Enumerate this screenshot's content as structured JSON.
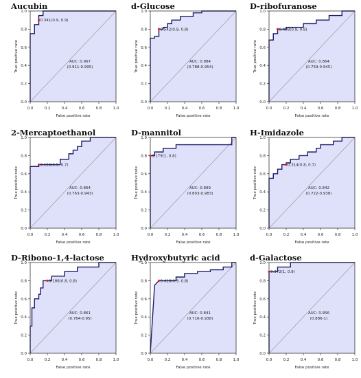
{
  "chart_data": [
    {
      "type": "line",
      "title": "Aucubin",
      "xlabel": "False positive rate",
      "ylabel": "True positive rate",
      "xlim": [
        0,
        1
      ],
      "ylim": [
        0,
        1
      ],
      "xticks": [
        "0.0",
        "0.2",
        "0.4",
        "0.6",
        "0.8",
        "1.0"
      ],
      "yticks": [
        "0.0",
        "0.2",
        "0.4",
        "0.6",
        "0.8",
        "1.0"
      ],
      "roc": [
        [
          0,
          0
        ],
        [
          0,
          0.75
        ],
        [
          0.05,
          0.75
        ],
        [
          0.05,
          0.85
        ],
        [
          0.1,
          0.85
        ],
        [
          0.1,
          0.9
        ],
        [
          0.1,
          0.95
        ],
        [
          0.15,
          0.95
        ],
        [
          0.15,
          1
        ],
        [
          1,
          1
        ]
      ],
      "threshold_point": [
        0.1,
        0.9
      ],
      "threshold_label": "0.341(0.9, 0.9)",
      "auc": "AUC: 0.967",
      "ci": "(0.911-0.995)"
    },
    {
      "type": "line",
      "title": "d-Glucose",
      "xlabel": "False positive rate",
      "ylabel": "True positive rate",
      "xlim": [
        0,
        1
      ],
      "ylim": [
        0,
        1
      ],
      "xticks": [
        "0.0",
        "0.2",
        "0.4",
        "0.6",
        "0.8",
        "1.0"
      ],
      "yticks": [
        "0.0",
        "0.2",
        "0.4",
        "0.6",
        "0.8",
        "1.0"
      ],
      "roc": [
        [
          0,
          0
        ],
        [
          0,
          0.7
        ],
        [
          0.05,
          0.7
        ],
        [
          0.05,
          0.72
        ],
        [
          0.1,
          0.72
        ],
        [
          0.1,
          0.8
        ],
        [
          0.15,
          0.8
        ],
        [
          0.15,
          0.82
        ],
        [
          0.2,
          0.82
        ],
        [
          0.2,
          0.86
        ],
        [
          0.25,
          0.86
        ],
        [
          0.25,
          0.9
        ],
        [
          0.35,
          0.9
        ],
        [
          0.35,
          0.94
        ],
        [
          0.5,
          0.94
        ],
        [
          0.5,
          0.98
        ],
        [
          0.6,
          0.98
        ],
        [
          0.6,
          1
        ],
        [
          1,
          1
        ]
      ],
      "threshold_point": [
        0.1,
        0.8
      ],
      "threshold_label": "0.542(0.9, 0.8)",
      "auc": "AUC: 0.884",
      "ci": "(0.788-0.954)"
    },
    {
      "type": "line",
      "title": "D-ribofuranose",
      "xlabel": "False positive rate",
      "ylabel": "True positive rate",
      "xlim": [
        0,
        1
      ],
      "ylim": [
        0,
        1
      ],
      "xticks": [
        "0.0",
        "0.2",
        "0.4",
        "0.6",
        "0.8",
        "1.0"
      ],
      "yticks": [
        "0.0",
        "0.2",
        "0.4",
        "0.6",
        "0.8",
        "1.0"
      ],
      "roc": [
        [
          0,
          0
        ],
        [
          0,
          0.68
        ],
        [
          0.05,
          0.68
        ],
        [
          0.05,
          0.75
        ],
        [
          0.1,
          0.75
        ],
        [
          0.1,
          0.8
        ],
        [
          0.2,
          0.8
        ],
        [
          0.2,
          0.82
        ],
        [
          0.4,
          0.82
        ],
        [
          0.4,
          0.86
        ],
        [
          0.55,
          0.86
        ],
        [
          0.55,
          0.9
        ],
        [
          0.7,
          0.9
        ],
        [
          0.7,
          0.95
        ],
        [
          0.85,
          0.95
        ],
        [
          0.85,
          1
        ],
        [
          1,
          1
        ]
      ],
      "threshold_point": [
        0.1,
        0.8
      ],
      "threshold_label": "0.488(0.9, 0.8)",
      "auc": "AUC: 0.864",
      "ci": "(0.759-0.945)"
    },
    {
      "type": "line",
      "title": "2-Mercaptoethanol",
      "xlabel": "False positive rate",
      "ylabel": "True positive rate",
      "xlim": [
        0,
        1
      ],
      "ylim": [
        0,
        1
      ],
      "xticks": [
        "0.0",
        "0.2",
        "0.4",
        "0.6",
        "0.8",
        "1.0"
      ],
      "yticks": [
        "0.0",
        "0.2",
        "0.4",
        "0.6",
        "0.8",
        "1.0"
      ],
      "roc": [
        [
          0,
          0
        ],
        [
          0,
          0.68
        ],
        [
          0.1,
          0.68
        ],
        [
          0.1,
          0.7
        ],
        [
          0.35,
          0.7
        ],
        [
          0.35,
          0.76
        ],
        [
          0.45,
          0.76
        ],
        [
          0.45,
          0.82
        ],
        [
          0.5,
          0.82
        ],
        [
          0.5,
          0.86
        ],
        [
          0.55,
          0.86
        ],
        [
          0.55,
          0.9
        ],
        [
          0.6,
          0.9
        ],
        [
          0.6,
          0.96
        ],
        [
          0.7,
          0.96
        ],
        [
          0.7,
          1
        ],
        [
          1,
          1
        ]
      ],
      "threshold_point": [
        0.1,
        0.7
      ],
      "threshold_label": "0.156(0.9, 0.7)",
      "auc": "AUC: 0.864",
      "ci": "(0.763-0.943)"
    },
    {
      "type": "line",
      "title": "D-mannitol",
      "xlabel": "False positive rate",
      "ylabel": "True positive rate",
      "xlim": [
        0,
        1
      ],
      "ylim": [
        0,
        1
      ],
      "xticks": [
        "0.0",
        "0.2",
        "0.4",
        "0.6",
        "0.8",
        "1.0"
      ],
      "yticks": [
        "0.0",
        "0.2",
        "0.4",
        "0.6",
        "0.8",
        "1.0"
      ],
      "roc": [
        [
          0,
          0
        ],
        [
          0,
          0.8
        ],
        [
          0.05,
          0.8
        ],
        [
          0.05,
          0.84
        ],
        [
          0.15,
          0.84
        ],
        [
          0.15,
          0.88
        ],
        [
          0.3,
          0.88
        ],
        [
          0.3,
          0.92
        ],
        [
          0.95,
          0.92
        ],
        [
          0.95,
          1
        ],
        [
          1,
          1
        ]
      ],
      "threshold_point": [
        0,
        0.8
      ],
      "threshold_label": "0.179(1, 0.8)",
      "auc": "AUC: 0.899",
      "ci": "(0.803-0.983)"
    },
    {
      "type": "line",
      "title": "H-Imidazole",
      "xlabel": "False positive rate",
      "ylabel": "True positive rate",
      "xlim": [
        0,
        1
      ],
      "ylim": [
        0,
        1
      ],
      "xticks": [
        "0.0",
        "0.2",
        "0.4",
        "0.6",
        "0.8",
        "1.0"
      ],
      "yticks": [
        "0.0",
        "0.2",
        "0.4",
        "0.6",
        "0.8",
        "1.0"
      ],
      "roc": [
        [
          0,
          0
        ],
        [
          0,
          0.55
        ],
        [
          0.05,
          0.55
        ],
        [
          0.05,
          0.6
        ],
        [
          0.1,
          0.6
        ],
        [
          0.1,
          0.65
        ],
        [
          0.15,
          0.65
        ],
        [
          0.15,
          0.7
        ],
        [
          0.2,
          0.7
        ],
        [
          0.2,
          0.72
        ],
        [
          0.25,
          0.72
        ],
        [
          0.25,
          0.76
        ],
        [
          0.35,
          0.76
        ],
        [
          0.35,
          0.8
        ],
        [
          0.45,
          0.8
        ],
        [
          0.45,
          0.84
        ],
        [
          0.55,
          0.84
        ],
        [
          0.55,
          0.88
        ],
        [
          0.6,
          0.88
        ],
        [
          0.6,
          0.92
        ],
        [
          0.75,
          0.92
        ],
        [
          0.75,
          0.96
        ],
        [
          0.85,
          0.96
        ],
        [
          0.85,
          1
        ],
        [
          1,
          1
        ]
      ],
      "threshold_point": [
        0.2,
        0.7
      ],
      "threshold_label": "0.314(0.8, 0.7)",
      "auc": "AUC: 0.842",
      "ci": "(0.722-0.938)"
    },
    {
      "type": "line",
      "title": "D-Ribono-1,4-lactose",
      "xlabel": "False positive rate",
      "ylabel": "True positive rate",
      "xlim": [
        0,
        1
      ],
      "ylim": [
        0,
        1
      ],
      "xticks": [
        "0.0",
        "0.2",
        "0.4",
        "0.6",
        "0.8",
        "1.0"
      ],
      "yticks": [
        "0.0",
        "0.2",
        "0.4",
        "0.6",
        "0.8",
        "1.0"
      ],
      "roc": [
        [
          0,
          0
        ],
        [
          0,
          0.3
        ],
        [
          0.02,
          0.3
        ],
        [
          0.02,
          0.5
        ],
        [
          0.05,
          0.5
        ],
        [
          0.05,
          0.6
        ],
        [
          0.1,
          0.6
        ],
        [
          0.1,
          0.65
        ],
        [
          0.12,
          0.65
        ],
        [
          0.12,
          0.72
        ],
        [
          0.15,
          0.72
        ],
        [
          0.15,
          0.8
        ],
        [
          0.25,
          0.8
        ],
        [
          0.25,
          0.85
        ],
        [
          0.4,
          0.85
        ],
        [
          0.4,
          0.9
        ],
        [
          0.55,
          0.9
        ],
        [
          0.55,
          0.95
        ],
        [
          0.8,
          0.95
        ],
        [
          0.8,
          1
        ],
        [
          1,
          1
        ]
      ],
      "threshold_point": [
        0.2,
        0.8
      ],
      "threshold_label": "0.186(0.8, 0.8)",
      "auc": "AUC: 0.861",
      "ci": "(0.764-0.95)"
    },
    {
      "type": "line",
      "title": "Hydroxybutyric acid",
      "xlabel": "False positive rate",
      "ylabel": "True positive rate",
      "xlim": [
        0,
        1
      ],
      "ylim": [
        0,
        1
      ],
      "xticks": [
        "0.0",
        "0.2",
        "0.4",
        "0.6",
        "0.8",
        "1.0"
      ],
      "yticks": [
        "0.0",
        "0.2",
        "0.4",
        "0.6",
        "0.8",
        "1.0"
      ],
      "roc": [
        [
          0,
          0
        ],
        [
          0.05,
          0.75
        ],
        [
          0.1,
          0.8
        ],
        [
          0.3,
          0.8
        ],
        [
          0.3,
          0.84
        ],
        [
          0.4,
          0.84
        ],
        [
          0.4,
          0.88
        ],
        [
          0.55,
          0.88
        ],
        [
          0.55,
          0.9
        ],
        [
          0.7,
          0.9
        ],
        [
          0.7,
          0.92
        ],
        [
          0.85,
          0.92
        ],
        [
          0.85,
          0.95
        ],
        [
          0.95,
          0.95
        ],
        [
          0.95,
          1
        ],
        [
          1,
          1
        ]
      ],
      "threshold_point": [
        0.1,
        0.8
      ],
      "threshold_label": "0.418(0.9, 0.8)",
      "auc": "AUC: 0.841",
      "ci": "(0.716-0.938)"
    },
    {
      "type": "line",
      "title": "d-Galactose",
      "xlabel": "False positive rate",
      "ylabel": "True positive rate",
      "xlim": [
        0,
        1
      ],
      "ylim": [
        0,
        1
      ],
      "xticks": [
        "0.0",
        "0.2",
        "0.4",
        "0.6",
        "0.8",
        "1.0"
      ],
      "yticks": [
        "0.0",
        "0.2",
        "0.4",
        "0.6",
        "0.8",
        "1.0"
      ],
      "roc": [
        [
          0,
          0
        ],
        [
          0,
          0.9
        ],
        [
          0.1,
          0.9
        ],
        [
          0.1,
          0.95
        ],
        [
          0.25,
          0.95
        ],
        [
          0.25,
          1
        ],
        [
          1,
          1
        ]
      ],
      "threshold_point": [
        0,
        0.9
      ],
      "threshold_label": "0.372(1, 0.9)",
      "auc": "AUC: 0.956",
      "ci": "(0.886-1)"
    }
  ],
  "colors": {
    "fill": "#dfe1fa",
    "curve": "#1a1a6b",
    "diagonal": "#9a9a9a",
    "marker": "#e02020",
    "axis": "#333333"
  }
}
